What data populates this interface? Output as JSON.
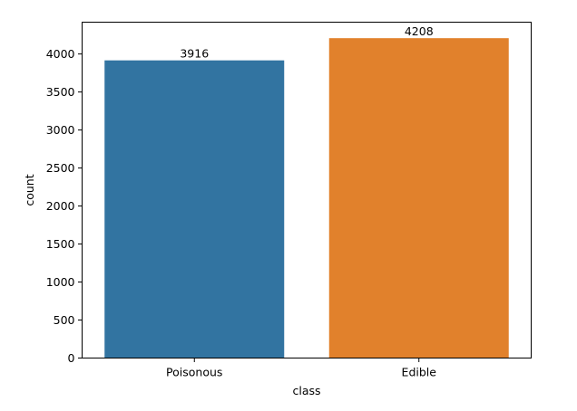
{
  "chart_data": {
    "type": "bar",
    "categories": [
      "Poisonous",
      "Edible"
    ],
    "values": [
      3916,
      4208
    ],
    "data_labels": [
      "3916",
      "4208"
    ],
    "colors": [
      "#3274a1",
      "#e1812c"
    ],
    "xlabel": "class",
    "ylabel": "count",
    "ylim": [
      0,
      4418.4
    ],
    "yticks": [
      0,
      500,
      1000,
      1500,
      2000,
      2500,
      3000,
      3500,
      4000
    ],
    "ytick_labels": [
      "0",
      "500",
      "1000",
      "1500",
      "2000",
      "2500",
      "3000",
      "3500",
      "4000"
    ],
    "grid": false,
    "legend": "none"
  }
}
